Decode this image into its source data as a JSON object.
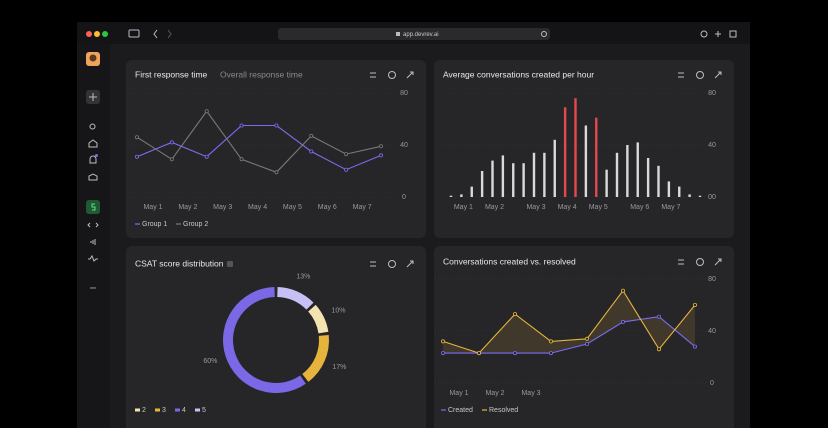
{
  "browser": {
    "url": "app.devrev.ai"
  },
  "chart_data": [
    {
      "type": "line",
      "title": "First response time",
      "tab": "Overall response time",
      "categories": [
        "May 1",
        "May 2",
        "May 3",
        "May 4",
        "May 5",
        "May 6",
        "May 7",
        null
      ],
      "series": [
        {
          "name": "Group 1",
          "color": "#7c6cf2",
          "values": [
            31,
            42,
            31,
            55,
            55,
            35,
            21,
            32
          ]
        },
        {
          "name": "Group 2",
          "color": "#7a7a7a",
          "values": [
            46,
            29,
            66,
            29,
            19,
            47,
            33,
            39
          ]
        }
      ],
      "ylim": [
        0,
        80
      ],
      "yticks": [
        0,
        40,
        80
      ],
      "grid": true
    },
    {
      "type": "bar",
      "title": "Average conversations created per hour",
      "categories": [
        null,
        "May 1",
        null,
        null,
        "May 2",
        null,
        null,
        null,
        "May 3",
        null,
        null,
        "May 4",
        null,
        null,
        "May 5",
        null,
        null,
        null,
        "May 6",
        null,
        null,
        "May 7",
        null,
        null,
        null
      ],
      "values": [
        1,
        2,
        8,
        20,
        28,
        32,
        26,
        26,
        34,
        34,
        44,
        69,
        76,
        55,
        61,
        21,
        34,
        40,
        42,
        30,
        24,
        12,
        8,
        2,
        1
      ],
      "colors": [
        "#d9d9d9",
        "#d9d9d9",
        "#d9d9d9",
        "#d9d9d9",
        "#d9d9d9",
        "#d9d9d9",
        "#d9d9d9",
        "#d9d9d9",
        "#d9d9d9",
        "#d9d9d9",
        "#d9d9d9",
        "#e5484d",
        "#e5484d",
        "#d9d9d9",
        "#e5484d",
        "#d9d9d9",
        "#d9d9d9",
        "#d9d9d9",
        "#d9d9d9",
        "#d9d9d9",
        "#d9d9d9",
        "#d9d9d9",
        "#d9d9d9",
        "#d9d9d9",
        "#d9d9d9"
      ],
      "ylim": [
        0,
        80
      ],
      "yticks": [
        {
          "value": 0,
          "label": "00"
        },
        40,
        80
      ],
      "grid": true
    },
    {
      "type": "donut",
      "title": "CSAT score distribution",
      "categories": [
        "2",
        "3",
        "4",
        "5"
      ],
      "values": [
        10,
        17,
        60,
        13
      ],
      "value_labels": [
        "10%",
        "17%",
        "60%",
        "13%"
      ],
      "colors": [
        "#f3e3b0",
        "#e6b43c",
        "#7b68e6",
        "#c7c0f5"
      ]
    },
    {
      "type": "line",
      "title": "Conversations created vs. resolved",
      "area": true,
      "categories": [
        "May 1",
        "May 2",
        "May 3",
        null,
        null,
        null,
        null,
        null
      ],
      "series": [
        {
          "name": "Created",
          "color": "#7c6cf2",
          "values": [
            23,
            23,
            23,
            23,
            30,
            47,
            51,
            28
          ]
        },
        {
          "name": "Resolved",
          "color": "#e6b43c",
          "values": [
            32,
            23,
            53,
            32,
            34,
            71,
            26,
            60
          ]
        }
      ],
      "ylim": [
        0,
        80
      ],
      "yticks": [
        0,
        40,
        80
      ],
      "grid": true
    }
  ]
}
